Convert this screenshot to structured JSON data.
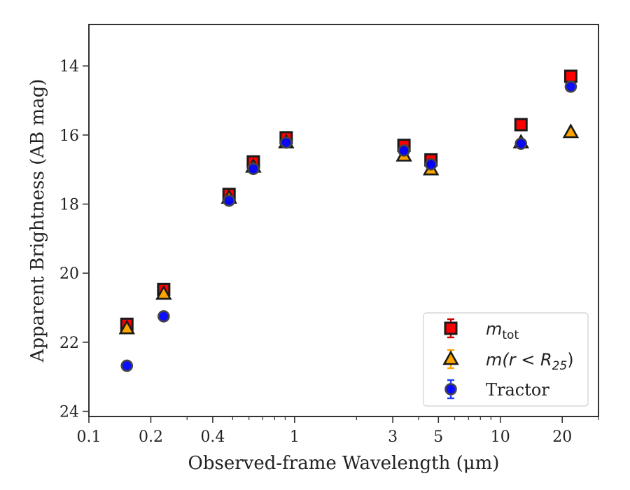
{
  "chart_data": {
    "type": "scatter",
    "title": "",
    "xlabel": "Observed-frame Wavelength (μm)",
    "ylabel": "Apparent Brightness (AB mag)",
    "xscale": "log",
    "xlim": [
      0.1,
      30
    ],
    "ylim": [
      24.15,
      12.8
    ],
    "y_inverted": true,
    "x_tick_labels": [
      "0.1",
      "0.2",
      "0.4",
      "1",
      "3",
      "5",
      "10",
      "20"
    ],
    "x_tick_values": [
      0.1,
      0.2,
      0.4,
      1,
      3,
      5,
      10,
      20
    ],
    "y_tick_labels": [
      "14",
      "16",
      "18",
      "20",
      "22",
      "24"
    ],
    "y_tick_values": [
      14,
      16,
      18,
      20,
      22,
      24
    ],
    "grid": false,
    "legend_position": "lower-right",
    "series": [
      {
        "name": "m_tot",
        "legend_label": "m",
        "legend_sub": "tot",
        "marker": "square",
        "color": "#ff0000",
        "errorbar_color": "#cc0000",
        "points": [
          {
            "x": 0.153,
            "y": 21.48
          },
          {
            "x": 0.231,
            "y": 20.47
          },
          {
            "x": 0.48,
            "y": 17.72
          },
          {
            "x": 0.63,
            "y": 16.78
          },
          {
            "x": 0.91,
            "y": 16.08
          },
          {
            "x": 3.4,
            "y": 16.3
          },
          {
            "x": 4.6,
            "y": 16.72
          },
          {
            "x": 12.6,
            "y": 15.7
          },
          {
            "x": 22.0,
            "y": 14.3
          }
        ]
      },
      {
        "name": "m(r < R_25)",
        "legend_label": "m(r < R",
        "legend_sub": "25",
        "legend_tail": ")",
        "marker": "triangle",
        "color": "#ffa500",
        "errorbar_color": "#ffa500",
        "points": [
          {
            "x": 0.153,
            "y": 21.6
          },
          {
            "x": 0.231,
            "y": 20.6
          },
          {
            "x": 0.48,
            "y": 17.82
          },
          {
            "x": 0.63,
            "y": 16.92
          },
          {
            "x": 0.91,
            "y": 16.22
          },
          {
            "x": 3.4,
            "y": 16.6
          },
          {
            "x": 4.6,
            "y": 17.0
          },
          {
            "x": 12.6,
            "y": 16.22
          },
          {
            "x": 22.0,
            "y": 15.92
          }
        ]
      },
      {
        "name": "Tractor",
        "legend_label": "Tractor",
        "marker": "circle",
        "color": "#0000ff",
        "errorbar_color": "#1f3fff",
        "points": [
          {
            "x": 0.153,
            "y": 22.68
          },
          {
            "x": 0.231,
            "y": 21.25
          },
          {
            "x": 0.48,
            "y": 17.9
          },
          {
            "x": 0.63,
            "y": 16.98
          },
          {
            "x": 0.91,
            "y": 16.22
          },
          {
            "x": 3.4,
            "y": 16.45
          },
          {
            "x": 4.6,
            "y": 16.85
          },
          {
            "x": 12.6,
            "y": 16.25
          },
          {
            "x": 22.0,
            "y": 14.6
          }
        ]
      }
    ]
  }
}
